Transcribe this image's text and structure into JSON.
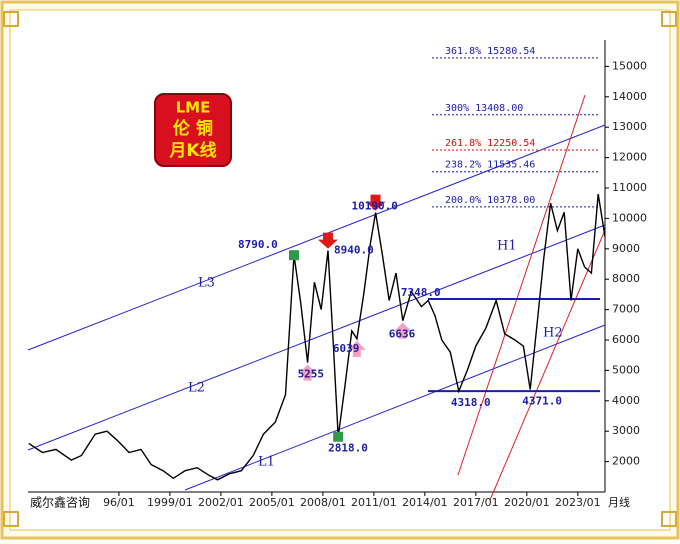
{
  "chart_data": {
    "type": "line",
    "title": [
      "LME",
      "伦 铜",
      "月K线"
    ],
    "source": "威尔鑫咨询",
    "period": "月线",
    "xlim": [
      1990.65,
      2024.6
    ],
    "xticks": [
      {
        "value": 1996,
        "label": "96/01"
      },
      {
        "value": 1999,
        "label": "1999/01"
      },
      {
        "value": 2002,
        "label": "2002/01"
      },
      {
        "value": 2005,
        "label": "2005/01"
      },
      {
        "value": 2008,
        "label": "2008/01"
      },
      {
        "value": 2011,
        "label": "2011/01"
      },
      {
        "value": 2014,
        "label": "2014/01"
      },
      {
        "value": 2017,
        "label": "2017/01"
      },
      {
        "value": 2020,
        "label": "2020/01"
      },
      {
        "value": 2023,
        "label": "2023/01"
      }
    ],
    "ylim": [
      1000,
      16000
    ],
    "yticks": [
      2000,
      3000,
      4000,
      5000,
      6000,
      7000,
      8000,
      9000,
      10000,
      11000,
      12000,
      13000,
      14000,
      15000
    ],
    "series": [
      {
        "color": "#000000",
        "x": [
          1990.7,
          1991.5,
          1992.3,
          1993.2,
          1993.8,
          1994.6,
          1995.3,
          1995.9,
          1996.6,
          1997.3,
          1997.9,
          1998.6,
          1999.2,
          1999.9,
          2000.6,
          2001.3,
          2001.8,
          2002.5,
          2003.2,
          2003.9,
          2004.5,
          2005.2,
          2005.8,
          2006.3,
          2006.7,
          2007.1,
          2007.5,
          2007.9,
          2008.3,
          2008.6,
          2008.9,
          2009.3,
          2009.7,
          2010.0,
          2010.4,
          2010.8,
          2011.1,
          2011.5,
          2011.9,
          2012.3,
          2012.7,
          2013.2,
          2013.8,
          2014.2,
          2014.6,
          2015.0,
          2015.5,
          2016.0,
          2016.5,
          2017.0,
          2017.6,
          2018.2,
          2018.7,
          2019.3,
          2019.8,
          2020.2,
          2020.6,
          2021.0,
          2021.4,
          2021.8,
          2022.2,
          2022.6,
          2023.0,
          2023.4,
          2023.8,
          2024.2,
          2024.6
        ],
        "values": [
          2600,
          2300,
          2400,
          2050,
          2200,
          2900,
          3000,
          2700,
          2300,
          2400,
          1900,
          1700,
          1450,
          1700,
          1800,
          1550,
          1400,
          1600,
          1700,
          2200,
          2900,
          3300,
          4200,
          8790,
          7200,
          5255,
          7900,
          7000,
          8940,
          6000,
          2818,
          4500,
          6300,
          6039,
          7500,
          9200,
          10190,
          8800,
          7300,
          8200,
          6636,
          7600,
          7100,
          7300,
          6800,
          6000,
          5600,
          4318,
          5000,
          5800,
          6400,
          7300,
          6200,
          6000,
          5800,
          4371,
          6500,
          8700,
          10500,
          9600,
          10200,
          7300,
          9000,
          8400,
          8200,
          10800,
          9400
        ]
      }
    ],
    "annotations": [
      {
        "x": 2006.3,
        "value": 8790,
        "label": "8790.0",
        "marker": "square"
      },
      {
        "x": 2008.3,
        "value": 8940,
        "label": "8940.0",
        "marker": "down"
      },
      {
        "x": 2011.1,
        "value": 10190,
        "label": "10190.0",
        "marker": "down"
      },
      {
        "x": 2007.1,
        "value": 5255,
        "label": "5255",
        "marker": "up"
      },
      {
        "x": 2010.0,
        "value": 6039,
        "label": "6039",
        "marker": "up"
      },
      {
        "x": 2012.7,
        "value": 6636,
        "label": "6636",
        "marker": "up"
      },
      {
        "x": 2008.9,
        "value": 2818,
        "label": "2818.0",
        "marker": "square"
      },
      {
        "x": 2016.0,
        "value": 4318,
        "label": "4318.0",
        "marker": "none"
      },
      {
        "x": 2020.2,
        "value": 4371,
        "label": "4371.0",
        "marker": "none"
      },
      {
        "x": 2016.0,
        "value": 7348,
        "label": "7348.0",
        "marker": "none"
      }
    ],
    "levels": [
      {
        "value": 7348,
        "color": "#1c1ca8"
      },
      {
        "value": 4318,
        "color": "#1c1ca8"
      }
    ],
    "fib_levels": [
      {
        "value": 15280.54,
        "label": "361.8%  15280.54",
        "color": "#1c1ca8"
      },
      {
        "value": 13408.0,
        "label": "300% 13408.00",
        "color": "#1c1ca8"
      },
      {
        "value": 12250.54,
        "label": "261.8%  12250.54",
        "color": "#d01010"
      },
      {
        "value": 11535.46,
        "label": "238.2%  11535.46",
        "color": "#1c1ca8"
      },
      {
        "value": 10378.0,
        "label": "200.0%  10378.00",
        "color": "#1c1ca8"
      }
    ],
    "channels": [
      "L1",
      "L2",
      "L3",
      "H1",
      "H2"
    ]
  }
}
